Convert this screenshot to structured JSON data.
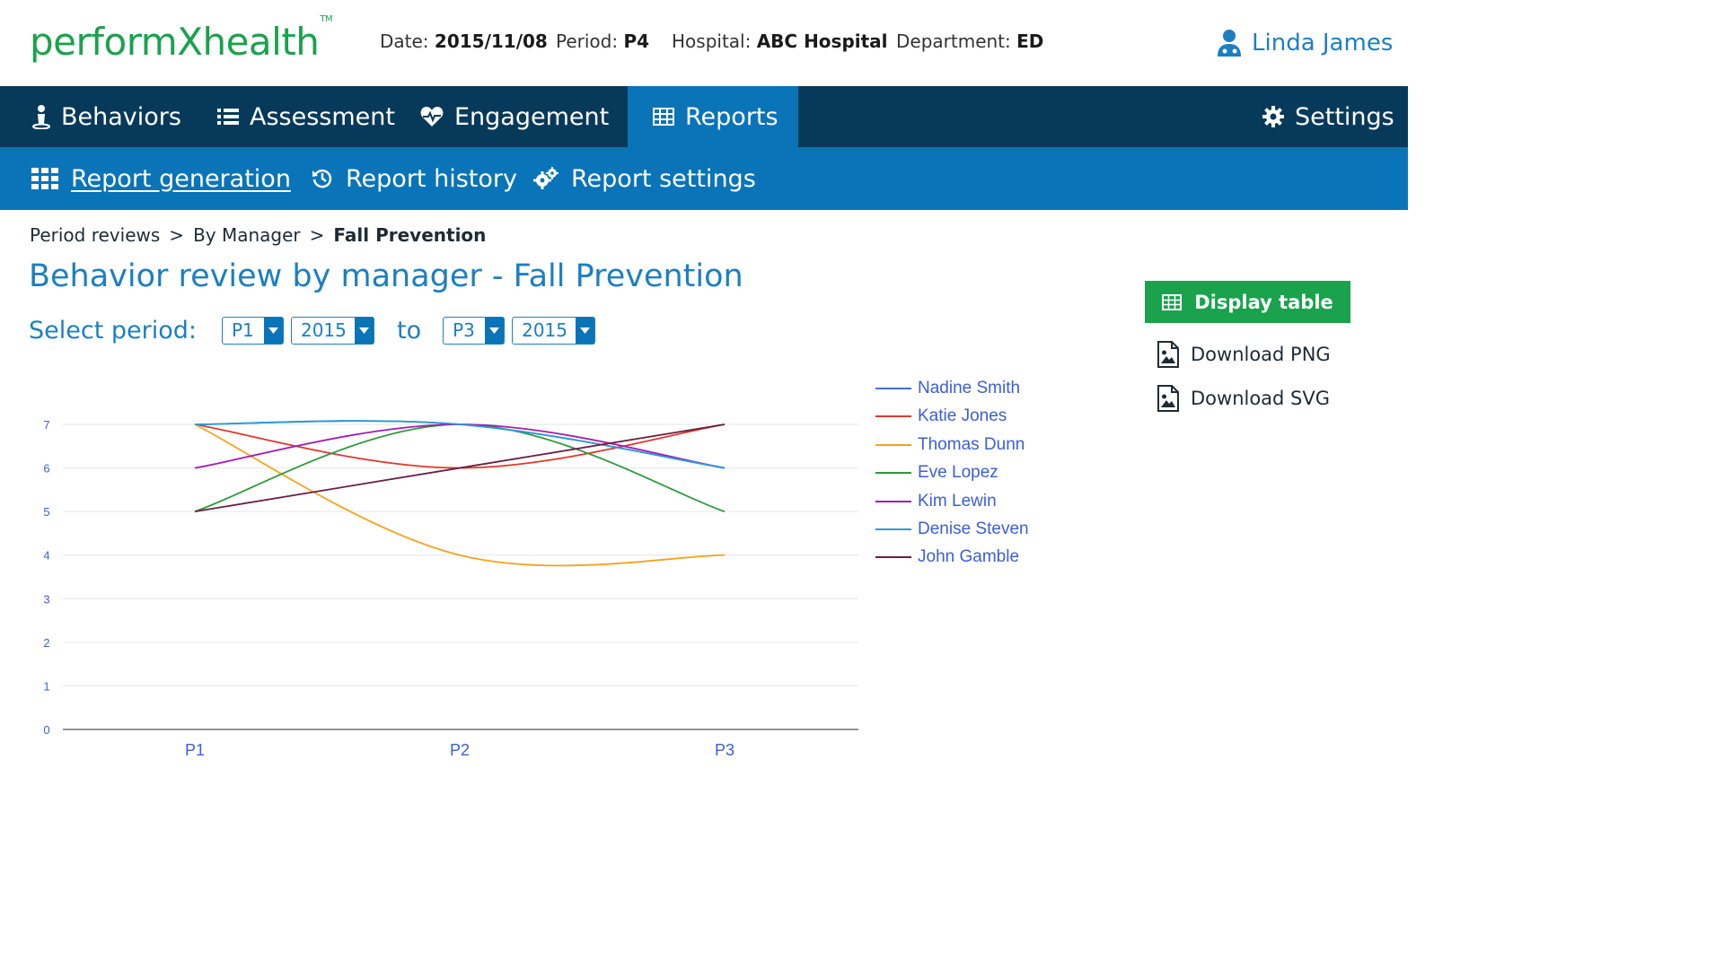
{
  "header": {
    "logo": "performXhealth",
    "logo_tm": "TM",
    "date_label": "Date:",
    "date_value": "2015/11/08",
    "period_label": "Period:",
    "period_value": "P4",
    "hospital_label": "Hospital:",
    "hospital_value": "ABC Hospital",
    "department_label": "Department:",
    "department_value": "ED",
    "user_name": "Linda James",
    "user_icon": "user-doctor-icon"
  },
  "main_nav": {
    "items": [
      {
        "label": "Behaviors",
        "icon": "person-icon"
      },
      {
        "label": "Assessment",
        "icon": "list-icon"
      },
      {
        "label": "Engagement",
        "icon": "heartbeat-icon"
      },
      {
        "label": "Reports",
        "icon": "table-icon",
        "active": true
      }
    ],
    "settings_label": "Settings",
    "settings_icon": "gear-icon"
  },
  "sub_nav": {
    "items": [
      {
        "label": "Report generation",
        "icon": "grid-icon",
        "active": true
      },
      {
        "label": "Report history",
        "icon": "history-icon"
      },
      {
        "label": "Report settings",
        "icon": "gears-icon"
      }
    ]
  },
  "breadcrumb": {
    "items": [
      "Period reviews",
      "By Manager"
    ],
    "separator": ">",
    "current": "Fall Prevention"
  },
  "page_title": "Behavior review by manager - Fall Prevention",
  "period_selector": {
    "label": "Select period:",
    "from_period": "P1",
    "from_year": "2015",
    "to_label": "to",
    "to_period": "P3",
    "to_year": "2015"
  },
  "actions": {
    "display_table": "Display table",
    "download_png": "Download PNG",
    "download_svg": "Download SVG"
  },
  "colors": {
    "brand_green": "#1aa24d",
    "nav_dark": "#073a5a",
    "nav_blue": "#0a74b8",
    "title_blue": "#1c7fc2"
  },
  "chart_data": {
    "type": "line",
    "x": [
      "P1",
      "P2",
      "P3"
    ],
    "ylim": [
      0,
      7
    ],
    "yticks": [
      0,
      1,
      2,
      3,
      4,
      5,
      6,
      7
    ],
    "grid": true,
    "legend_position": "right",
    "series": [
      {
        "name": "Nadine Smith",
        "color": "#3f6ed8",
        "values": [
          7,
          7,
          6
        ]
      },
      {
        "name": "Katie Jones",
        "color": "#e0392b",
        "values": [
          7,
          6,
          7
        ]
      },
      {
        "name": "Thomas Dunn",
        "color": "#f7a21b",
        "values": [
          7,
          4,
          4
        ]
      },
      {
        "name": "Eve Lopez",
        "color": "#2b9b3a",
        "values": [
          5,
          7,
          5
        ]
      },
      {
        "name": "Kim Lewin",
        "color": "#a21cb5",
        "values": [
          6,
          7,
          6
        ]
      },
      {
        "name": "Denise Steven",
        "color": "#2a9bd6",
        "values": [
          7,
          7,
          6
        ]
      },
      {
        "name": "John Gamble",
        "color": "#6a1e44",
        "values": [
          5,
          6,
          7
        ]
      }
    ]
  }
}
